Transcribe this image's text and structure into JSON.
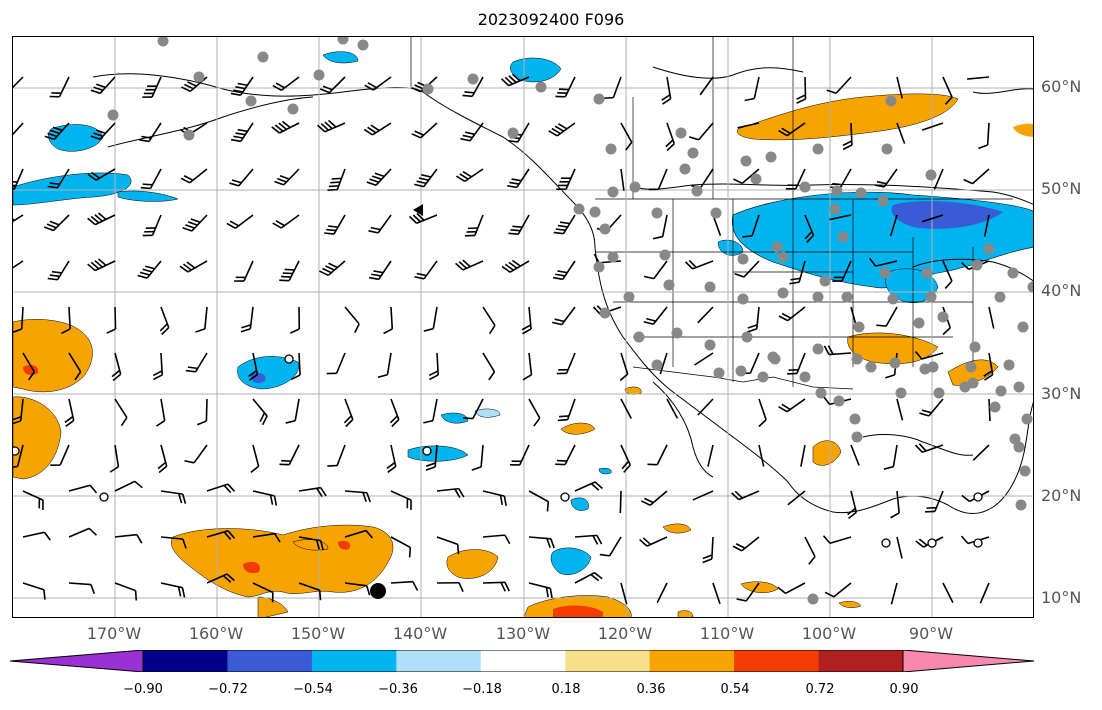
{
  "title": "2023092400 F096",
  "lat_labels": [
    "60°N",
    "50°N",
    "40°N",
    "30°N",
    "20°N",
    "10°N"
  ],
  "lon_labels": [
    "170°W",
    "160°W",
    "150°W",
    "140°W",
    "130°W",
    "120°W",
    "110°W",
    "100°W",
    "90°W"
  ],
  "colorbar": {
    "ticks": [
      "−0.90",
      "−0.72",
      "−0.54",
      "−0.36",
      "−0.18",
      "0.18",
      "0.36",
      "0.54",
      "0.72",
      "0.90"
    ],
    "colors": [
      "#9b30d3",
      "#00008b",
      "#3a5bd6",
      "#00b4f0",
      "#aee0f8",
      "#ffffff",
      "#f8e08a",
      "#f7a300",
      "#f53c00",
      "#b02020",
      "#f888ae"
    ]
  },
  "colors": {
    "orange": "#f7a300",
    "red": "#f53c00",
    "lightblue": "#00b4f0",
    "paleblue": "#aee0f8",
    "blue": "#3a5bd6",
    "station": "#888888",
    "grid": "#b0b0b0"
  }
}
